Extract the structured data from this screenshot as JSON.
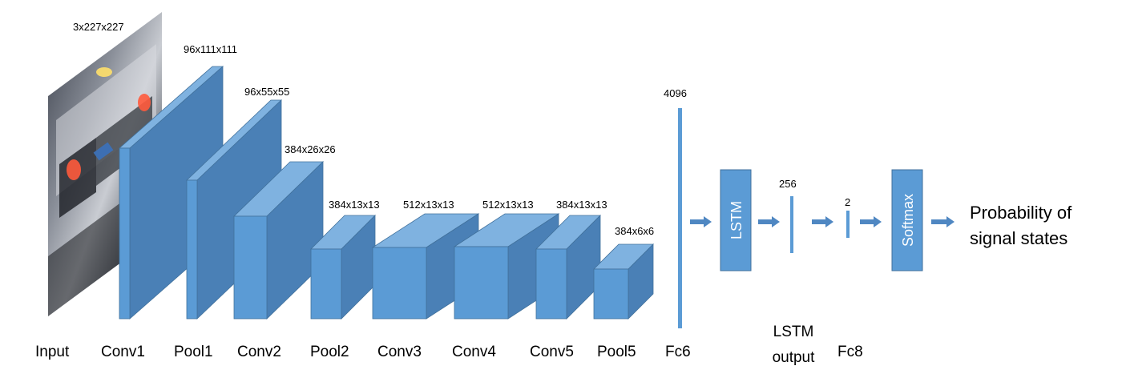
{
  "colors": {
    "front": "#5B9BD5",
    "top": "#7FB2E0",
    "side": "#4A80B6",
    "edge": "#41719C",
    "arrow": "#4F87C2"
  },
  "input": {
    "dims": "3x227x227",
    "label": "Input"
  },
  "layers": [
    {
      "id": "conv1",
      "dims": "96x111x111",
      "label": "Conv1"
    },
    {
      "id": "pool1",
      "dims": "96x55x55",
      "label": "Pool1"
    },
    {
      "id": "conv2",
      "dims": "384x26x26",
      "label": "Conv2"
    },
    {
      "id": "pool2",
      "dims": "384x13x13",
      "label": "Pool2"
    },
    {
      "id": "conv3",
      "dims": "512x13x13",
      "label": "Conv3"
    },
    {
      "id": "conv4",
      "dims": "512x13x13",
      "label": "Conv4"
    },
    {
      "id": "conv5",
      "dims": "384x13x13",
      "label": "Conv5"
    },
    {
      "id": "pool5",
      "dims": "384x6x6",
      "label": "Pool5"
    }
  ],
  "fc6": {
    "dims": "4096",
    "label": "Fc6"
  },
  "lstm": {
    "box_label": "LSTM",
    "output_dims": "256",
    "output_label_line1": "LSTM",
    "output_label_line2": "output"
  },
  "fc8": {
    "dims": "2",
    "label": "Fc8"
  },
  "softmax": {
    "box_label": "Softmax"
  },
  "output": {
    "line1": "Probability of",
    "line2": "signal states"
  }
}
